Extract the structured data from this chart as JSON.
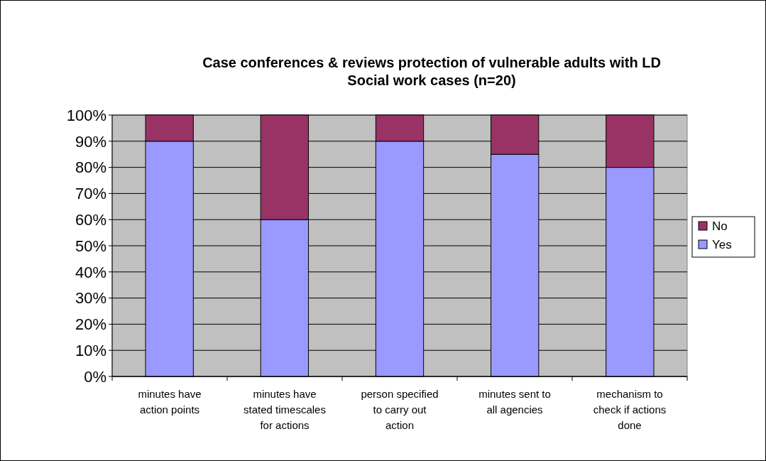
{
  "chart_data": {
    "type": "bar",
    "title": "Case conferences & reviews protection of vulnerable adults with LD",
    "subtitle": "Social work cases (n=20)",
    "categories": [
      "minutes have action points",
      "minutes have stated timescales for actions",
      "person specified to carry out action",
      "minutes sent to all agencies",
      "mechanism to check if actions done"
    ],
    "series": [
      {
        "name": "Yes",
        "color": "#9999ff",
        "values": [
          90,
          60,
          90,
          85,
          80
        ]
      },
      {
        "name": "No",
        "color": "#993366",
        "values": [
          10,
          40,
          10,
          15,
          20
        ]
      }
    ],
    "stacked": true,
    "ylim": [
      0,
      100
    ],
    "yticks": [
      {
        "value": 0,
        "label": "0%"
      },
      {
        "value": 10,
        "label": "10%"
      },
      {
        "value": 20,
        "label": "20%"
      },
      {
        "value": 30,
        "label": "30%"
      },
      {
        "value": 40,
        "label": "40%"
      },
      {
        "value": 50,
        "label": "50%"
      },
      {
        "value": 60,
        "label": "60%"
      },
      {
        "value": 70,
        "label": "70%"
      },
      {
        "value": 80,
        "label": "80%"
      },
      {
        "value": 90,
        "label": "90%"
      },
      {
        "value": 100,
        "label": "100%"
      }
    ],
    "grid": "y",
    "legend": "right"
  }
}
